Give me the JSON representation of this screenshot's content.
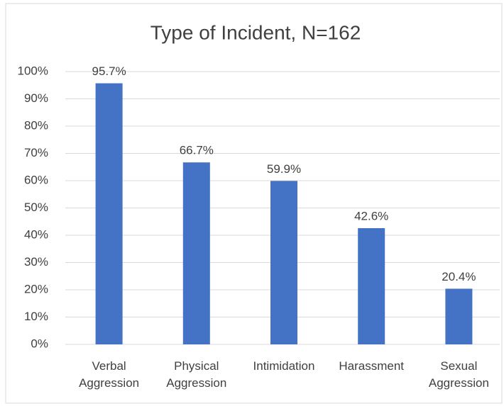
{
  "chart_data": {
    "type": "bar",
    "title": "Type of Incident, N=162",
    "categories": [
      "Verbal Aggression",
      "Physical Aggression",
      "Intimidation",
      "Harassment",
      "Sexual Aggression"
    ],
    "values": [
      95.7,
      66.7,
      59.9,
      42.6,
      20.4
    ],
    "value_labels": [
      "95.7%",
      "66.7%",
      "59.9%",
      "42.6%",
      "20.4%"
    ],
    "color": "#4472c4",
    "ylim": [
      0,
      100
    ],
    "yticks": [
      {
        "value": 0,
        "label": "0%"
      },
      {
        "value": 10,
        "label": "10%"
      },
      {
        "value": 20,
        "label": "20%"
      },
      {
        "value": 30,
        "label": "30%"
      },
      {
        "value": 40,
        "label": "40%"
      },
      {
        "value": 50,
        "label": "50%"
      },
      {
        "value": 60,
        "label": "60%"
      },
      {
        "value": 70,
        "label": "70%"
      },
      {
        "value": 80,
        "label": "80%"
      },
      {
        "value": 90,
        "label": "90%"
      },
      {
        "value": 100,
        "label": "100%"
      }
    ],
    "grid": true
  }
}
